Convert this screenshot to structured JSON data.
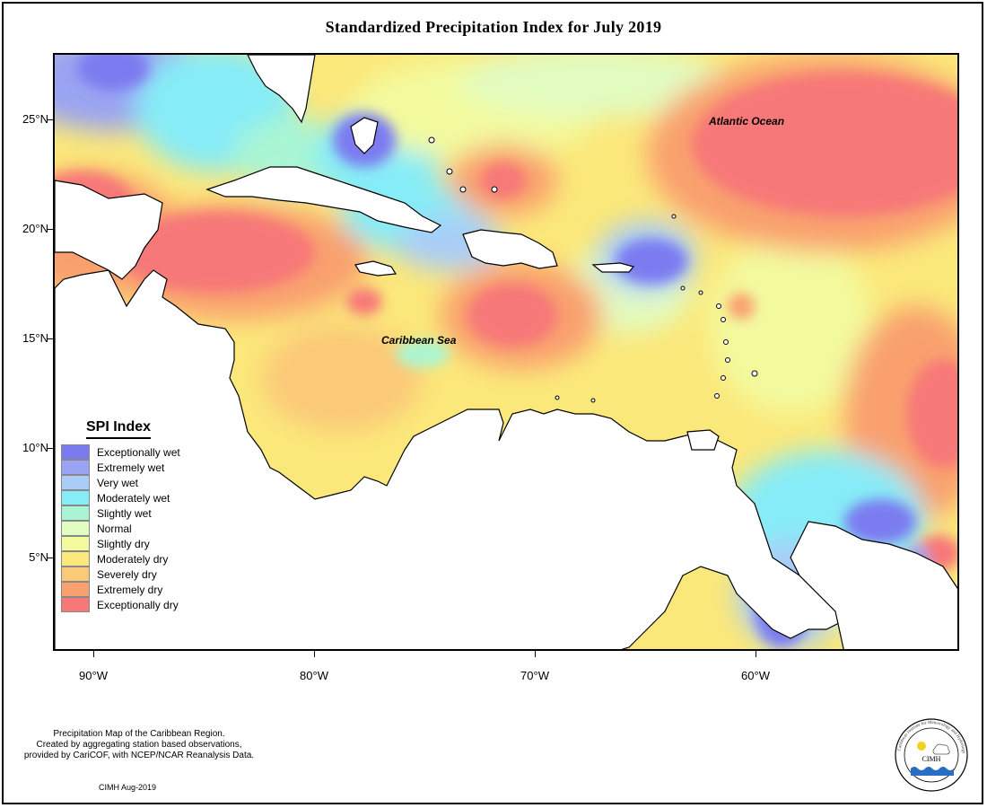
{
  "title": "Standardized Precipitation Index for July 2019",
  "axes": {
    "lat_labels": [
      "25°N",
      "20°N",
      "15°N",
      "10°N",
      "5°N"
    ],
    "lon_labels": [
      "90°W",
      "80°W",
      "70°W",
      "60°W"
    ]
  },
  "map_labels": {
    "atlantic": "Atlantic Ocean",
    "caribbean": "Caribbean Sea"
  },
  "legend": {
    "title": "SPI Index",
    "items": [
      {
        "label": "Exceptionally wet",
        "color": "#7b7bf0"
      },
      {
        "label": "Extremely wet",
        "color": "#9aa4f2"
      },
      {
        "label": "Very wet",
        "color": "#a9cdf7"
      },
      {
        "label": "Moderately wet",
        "color": "#86ecf7"
      },
      {
        "label": "Slightly wet",
        "color": "#a9f5d3"
      },
      {
        "label": "Normal",
        "color": "#e2fbc0"
      },
      {
        "label": "Slightly dry",
        "color": "#f3fa9e"
      },
      {
        "label": "Moderately dry",
        "color": "#fbe87a"
      },
      {
        "label": "Severely dry",
        "color": "#fbc978"
      },
      {
        "label": "Extremely dry",
        "color": "#f9a06e"
      },
      {
        "label": "Exceptionally dry",
        "color": "#f77878"
      }
    ]
  },
  "footnote": {
    "line1": "Precipitation Map of the Caribbean Region.",
    "line2": "Created by aggregating station based observations,",
    "line3": "provided by CariCOF, with NCEP/NCAR Reanalysis Data."
  },
  "credit": "CIMH Aug-2019",
  "logo": {
    "text": "CIMH",
    "ring_text": "Caribbean Institute for Meteorology and Hydrology"
  }
}
